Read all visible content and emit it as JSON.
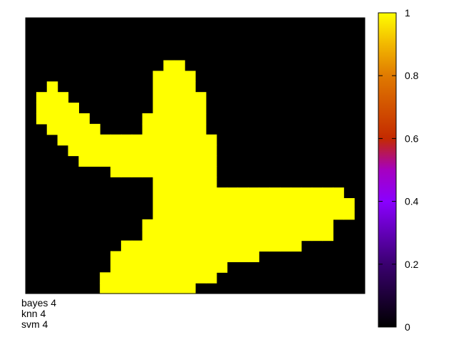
{
  "chart_data": {
    "type": "heatmap",
    "colormap": "gnuplot-hot-purple",
    "colorbar": {
      "min": 0,
      "max": 1,
      "ticks": [
        "0",
        "0.2",
        "0.4",
        "0.6",
        "0.8",
        "1"
      ]
    },
    "grid_size": {
      "cols": 32,
      "rows": 26
    },
    "cell_value_high": 1,
    "cell_value_low": 0,
    "mask_rows": [
      "00000000000000000000000000000000",
      "00000000000000000000000000000000",
      "00000000000000000000000000000000",
      "00000000000000000000000000000000",
      "00000000000001100000000000000000",
      "00000000000011110000000000000000",
      "00100000000011110000000000000000",
      "01110000000011111000000000000000",
      "01111000000011111000000000000000",
      "01111100000111111000000000000000",
      "00111110000111111000000000000000",
      "00011111111111111100000000000000",
      "00001111111111111100000000000000",
      "00000111111111111100000000000000",
      "00000000111111111100000000000000",
      "00000000000011111100000000000000",
      "00000000000011111111111111111100",
      "00000000000011111111111111111110",
      "00000000000011111111111111111110",
      "00000000000111111111111111111000",
      "00000000000111111111111111111000",
      "00000000011111111111111111000000",
      "00000000111111111111110000000000",
      "00000000111111111110000000000000",
      "00000001111111111100000000000000",
      "00000001111111110000000000000000"
    ]
  },
  "captions": [
    "bayes 4",
    "knn 4",
    "svm 4"
  ],
  "colors": {
    "low": "#000000",
    "high": "#ffff00"
  }
}
